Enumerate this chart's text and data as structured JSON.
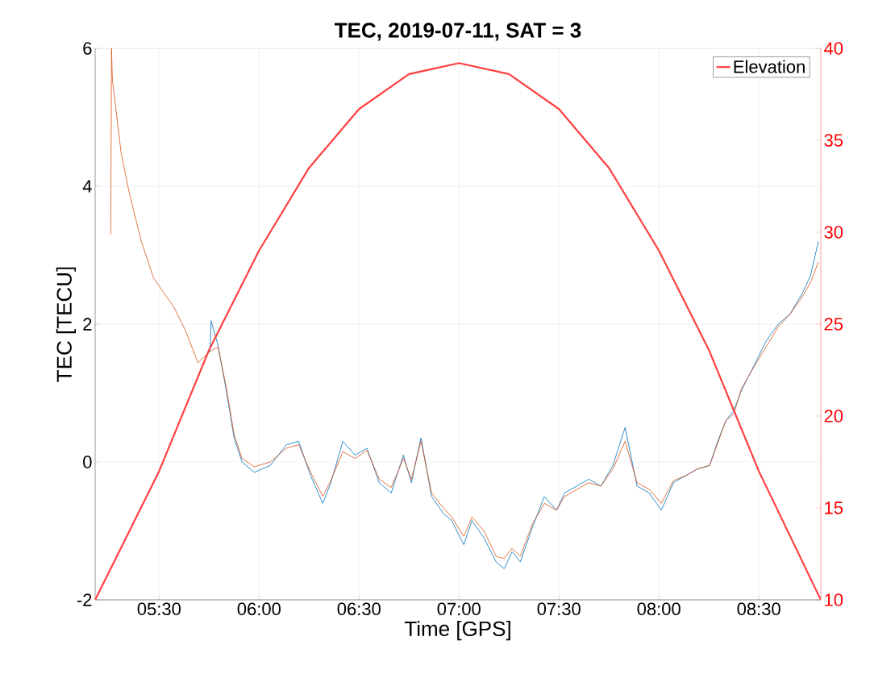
{
  "chart_data": {
    "type": "line",
    "title": "TEC, 2019-07-11, SAT = 3",
    "xlabel": "Time [GPS]",
    "ylabel": "TEC [TECU]",
    "xlim": [
      5.18,
      8.81
    ],
    "ylim": [
      -2,
      6
    ],
    "y2lim": [
      10,
      40
    ],
    "xticks": [
      {
        "value": 5.5,
        "label": "05:30"
      },
      {
        "value": 6.0,
        "label": "06:00"
      },
      {
        "value": 6.5,
        "label": "06:30"
      },
      {
        "value": 7.0,
        "label": "07:00"
      },
      {
        "value": 7.5,
        "label": "07:30"
      },
      {
        "value": 8.0,
        "label": "08:00"
      },
      {
        "value": 8.5,
        "label": "08:30"
      }
    ],
    "yticks": [
      -2,
      0,
      2,
      4,
      6
    ],
    "y2ticks": [
      10,
      15,
      20,
      25,
      30,
      35,
      40
    ],
    "grid": true,
    "legend": "top right",
    "series": [
      {
        "color": "#0072bd",
        "x": [
          5.754,
          5.76,
          5.794,
          5.835,
          5.875,
          5.915,
          5.976,
          6.056,
          6.137,
          6.198,
          6.258,
          6.319,
          6.359,
          6.419,
          6.48,
          6.54,
          6.601,
          6.661,
          6.722,
          6.762,
          6.81,
          6.863,
          6.923,
          6.964,
          7.024,
          7.065,
          7.125,
          7.186,
          7.226,
          7.266,
          7.307,
          7.367,
          7.427,
          7.488,
          7.528,
          7.589,
          7.649,
          7.71,
          7.77,
          7.831,
          7.891,
          7.952,
          8.012,
          8.073,
          8.133,
          8.194,
          8.254,
          8.294,
          8.335,
          8.375,
          8.415,
          8.476,
          8.536,
          8.597,
          8.657,
          8.718,
          8.758,
          8.798
        ],
        "values": [
          1.6,
          2.05,
          1.7,
          1.05,
          0.35,
          0.0,
          -0.15,
          -0.05,
          0.25,
          0.3,
          -0.2,
          -0.6,
          -0.3,
          0.3,
          0.1,
          0.2,
          -0.3,
          -0.45,
          0.1,
          -0.3,
          0.35,
          -0.5,
          -0.75,
          -0.85,
          -1.2,
          -0.85,
          -1.1,
          -1.45,
          -1.55,
          -1.3,
          -1.45,
          -0.95,
          -0.5,
          -0.7,
          -0.45,
          -0.35,
          -0.25,
          -0.35,
          -0.05,
          0.5,
          -0.35,
          -0.45,
          -0.7,
          -0.3,
          -0.2,
          -0.1,
          -0.05,
          0.3,
          0.6,
          0.75,
          1.05,
          1.4,
          1.75,
          2.0,
          2.15,
          2.45,
          2.7,
          3.2
        ]
      },
      {
        "color": "#d95319",
        "x": [
          5.258,
          5.262,
          5.265,
          5.268,
          5.31,
          5.351,
          5.411,
          5.472,
          5.512,
          5.573,
          5.633,
          5.694,
          5.754,
          5.794,
          5.835,
          5.875,
          5.915,
          5.976,
          6.056,
          6.137,
          6.198,
          6.258,
          6.319,
          6.359,
          6.419,
          6.48,
          6.54,
          6.601,
          6.661,
          6.722,
          6.762,
          6.81,
          6.863,
          6.923,
          6.964,
          7.024,
          7.065,
          7.125,
          7.186,
          7.226,
          7.266,
          7.307,
          7.367,
          7.427,
          7.488,
          7.528,
          7.589,
          7.649,
          7.71,
          7.77,
          7.831,
          7.891,
          7.952,
          8.012,
          8.073,
          8.133,
          8.194,
          8.254,
          8.294,
          8.335,
          8.375,
          8.415,
          8.476,
          8.536,
          8.597,
          8.657,
          8.718,
          8.758,
          8.798
        ],
        "values": [
          3.3,
          6.0,
          5.65,
          5.5,
          4.48,
          3.9,
          3.2,
          2.67,
          2.5,
          2.25,
          1.9,
          1.44,
          1.6,
          1.67,
          1.1,
          0.4,
          0.05,
          -0.07,
          0.0,
          0.2,
          0.25,
          -0.15,
          -0.5,
          -0.27,
          0.15,
          0.05,
          0.17,
          -0.25,
          -0.37,
          0.05,
          -0.25,
          0.3,
          -0.45,
          -0.67,
          -0.8,
          -1.08,
          -0.8,
          -1.0,
          -1.37,
          -1.4,
          -1.25,
          -1.37,
          -0.9,
          -0.6,
          -0.7,
          -0.5,
          -0.4,
          -0.3,
          -0.35,
          -0.1,
          0.3,
          -0.3,
          -0.4,
          -0.6,
          -0.27,
          -0.2,
          -0.1,
          -0.05,
          0.27,
          0.6,
          0.7,
          1.08,
          1.38,
          1.67,
          1.96,
          2.15,
          2.4,
          2.6,
          2.9
        ]
      },
      {
        "name": "Elevation",
        "color": "#ff4040",
        "axis": "y2",
        "x": [
          5.18,
          5.5,
          5.75,
          6.0,
          6.25,
          6.5,
          6.75,
          7.0,
          7.25,
          7.5,
          7.75,
          8.0,
          8.25,
          8.5,
          8.81
        ],
        "values": [
          10,
          17,
          23.6,
          29,
          33.5,
          36.7,
          38.6,
          39.2,
          38.6,
          36.7,
          33.5,
          29,
          23.6,
          17,
          10
        ]
      }
    ]
  }
}
